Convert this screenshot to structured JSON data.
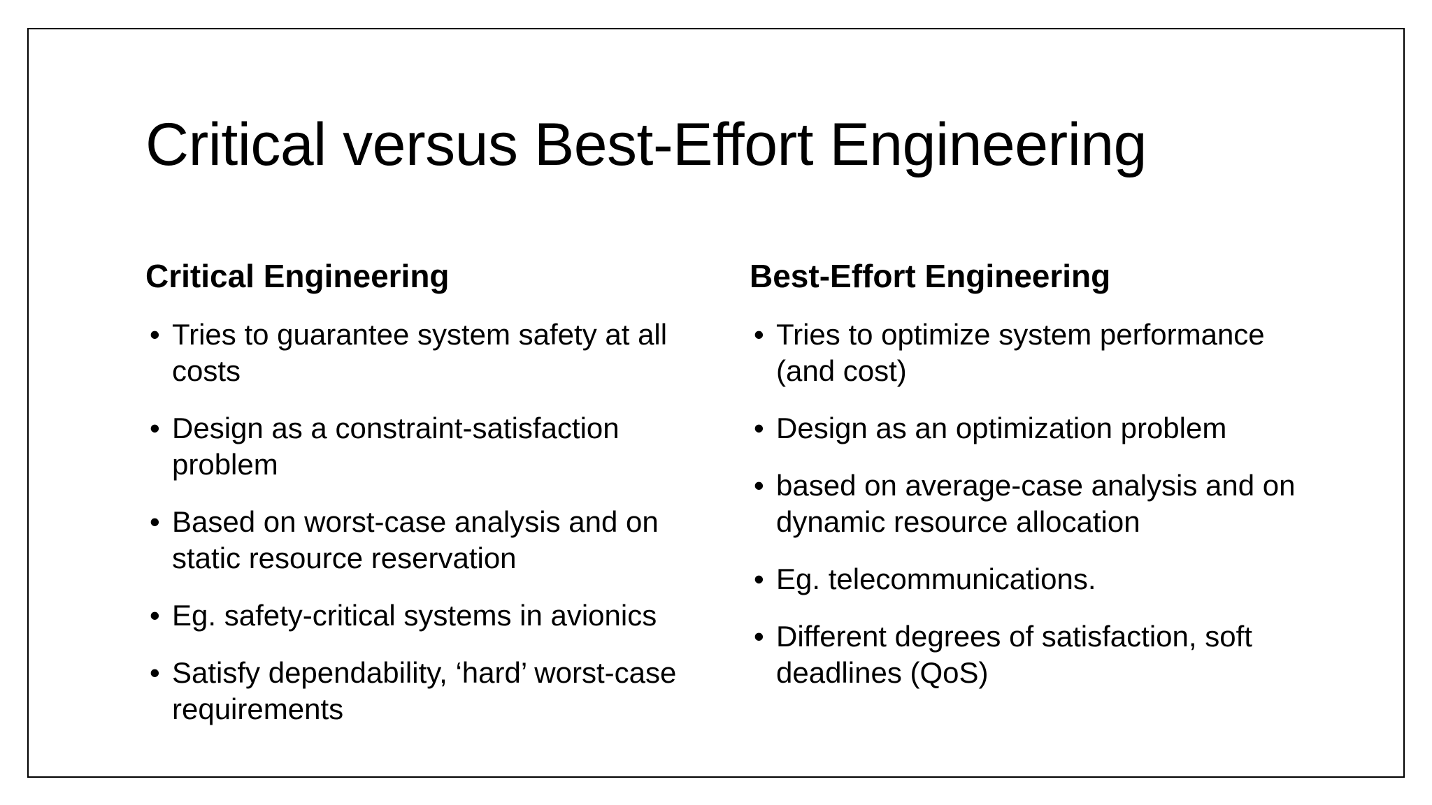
{
  "slide": {
    "title": "Critical versus Best-Effort Engineering"
  },
  "left_column": {
    "heading": "Critical Engineering",
    "items": [
      {
        "text": "Tries to guarantee system safety at all costs"
      },
      {
        "text": "Design as a constraint-satisfaction problem"
      },
      {
        "text": "Based on worst-case analysis and on static resource reservation"
      },
      {
        "text": "Eg. safety-critical systems in avionics"
      },
      {
        "text": "Satisfy dependability, ‘hard’ worst-case requirements"
      }
    ]
  },
  "right_column": {
    "heading": "Best-Effort Engineering",
    "items": [
      {
        "text": "Tries to optimize system performance (and cost)"
      },
      {
        "text": "Design as an optimization problem"
      },
      {
        "text": "based on average-case analysis and on dynamic resource allocation"
      },
      {
        "text": "Eg. telecommunications."
      },
      {
        "text": "Different degrees of satisfaction, soft deadlines (QoS)"
      }
    ]
  },
  "bullet_glyph": "•"
}
